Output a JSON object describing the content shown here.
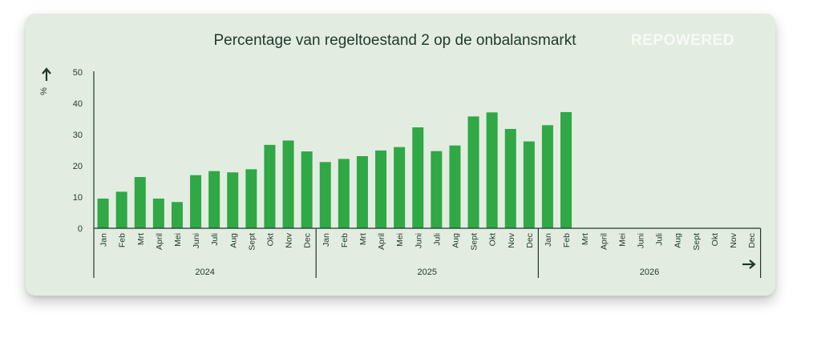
{
  "brand": {
    "logo_text": "REPOWERED"
  },
  "chart_data": {
    "type": "bar",
    "title": "Percentage van regeltoestand 2 op de onbalansmarkt",
    "ylabel": "%",
    "ylim": [
      0,
      50
    ],
    "yticks": [
      0,
      10,
      20,
      30,
      40,
      50
    ],
    "colors": {
      "bar": "#2fa845",
      "axis": "#1f3a2a",
      "background": "#e3ece1"
    },
    "years": [
      {
        "label": "2024",
        "months": [
          "Jan",
          "Feb",
          "Mrt",
          "April",
          "Mei",
          "Juni",
          "Juli",
          "Aug",
          "Sept",
          "Okt",
          "Nov",
          "Dec"
        ],
        "values": [
          9.5,
          11.7,
          16.4,
          9.5,
          8.4,
          17.0,
          18.3,
          17.9,
          18.9,
          26.7,
          28.1,
          24.6
        ]
      },
      {
        "label": "2025",
        "months": [
          "Jan",
          "Feb",
          "Mrt",
          "April",
          "Mei",
          "Juni",
          "Juli",
          "Aug",
          "Sept",
          "Okt",
          "Nov",
          "Dec"
        ],
        "values": [
          21.2,
          22.2,
          23.1,
          24.9,
          26.0,
          32.3,
          24.7,
          26.5,
          35.8,
          37.1,
          31.8,
          27.8
        ]
      },
      {
        "label": "2026",
        "months": [
          "Jan",
          "Feb",
          "Mrt",
          "April",
          "Mei",
          "Juni",
          "Juli",
          "Aug",
          "Sept",
          "Okt",
          "Nov",
          "Dec"
        ],
        "values": [
          33.0,
          37.2,
          null,
          null,
          null,
          null,
          null,
          null,
          null,
          null,
          null,
          null
        ]
      }
    ]
  }
}
